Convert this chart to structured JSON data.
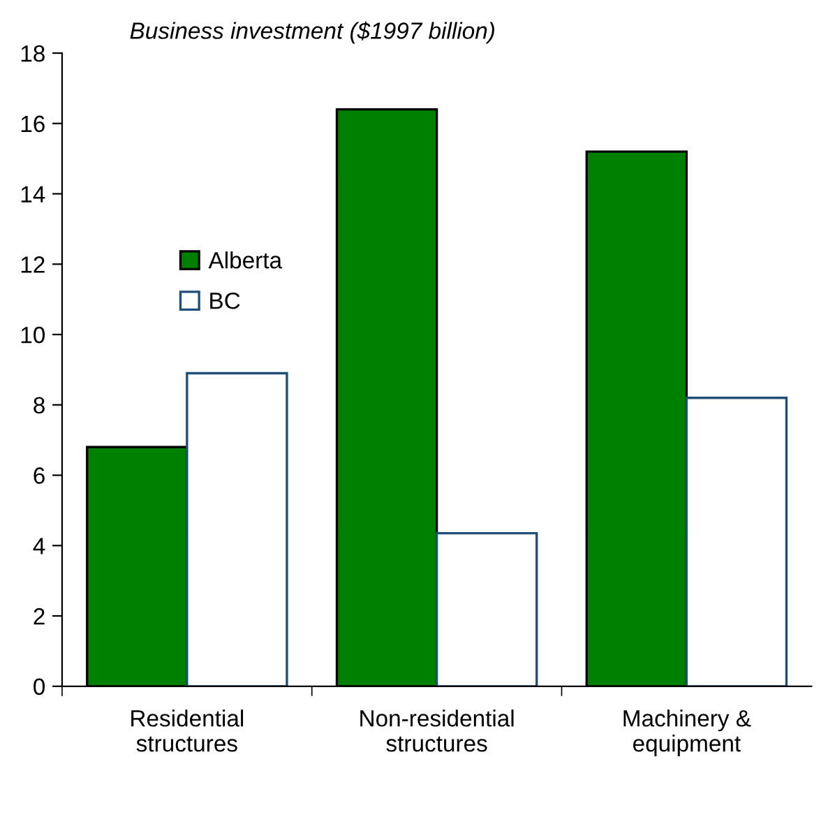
{
  "chart_data": {
    "type": "bar",
    "title": "Business investment ($1997 billion)",
    "categories": [
      "Residential\nstructures",
      "Non-residential\nstructures",
      "Machinery &\nequipment"
    ],
    "series": [
      {
        "name": "Alberta",
        "color": "#008000",
        "values": [
          6.8,
          16.4,
          15.2
        ]
      },
      {
        "name": "BC",
        "color": "#ffffff",
        "values": [
          8.9,
          4.35,
          8.2
        ]
      }
    ],
    "ylim": [
      0,
      18
    ],
    "yticks": [
      0,
      2,
      4,
      6,
      8,
      10,
      12,
      14,
      16,
      18
    ],
    "grid": false,
    "legend": "top left"
  }
}
